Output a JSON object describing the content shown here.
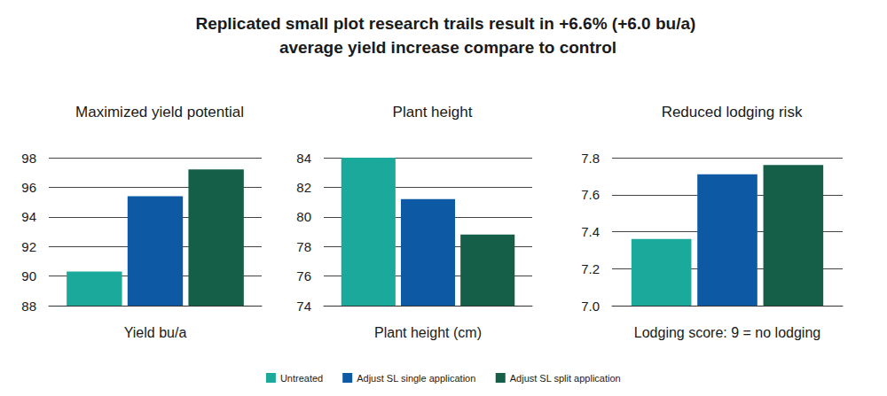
{
  "title": "Replicated small plot research trails result in +6.6% (+6.0 bu/a) average yield increase compare to control",
  "legend": "bottom",
  "chart_data": [
    {
      "type": "bar",
      "title": "Maximized yield potential",
      "x_label": "Yield bu/a",
      "categories": [
        null
      ],
      "tick_labels": "y",
      "grid": true,
      "ylim": [
        88,
        98
      ],
      "yticks": [
        88,
        90,
        92,
        94,
        96,
        98
      ],
      "series": [
        {
          "name": "Untreated",
          "color": "#1aa99b",
          "values": [
            90.3
          ]
        },
        {
          "name": "Adjust SL single application",
          "color": "#0e59a4",
          "values": [
            95.4
          ]
        },
        {
          "name": "Adjust SL split application",
          "color": "#155e48",
          "values": [
            97.2
          ]
        }
      ]
    },
    {
      "type": "bar",
      "title": "Plant height",
      "x_label": "Plant height (cm)",
      "categories": [
        null
      ],
      "tick_labels": "y",
      "grid": true,
      "ylim": [
        74,
        84
      ],
      "yticks": [
        74,
        76,
        78,
        80,
        82,
        84
      ],
      "series": [
        {
          "name": "Untreated",
          "color": "#1aa99b",
          "values": [
            84.0
          ]
        },
        {
          "name": "Adjust SL single application",
          "color": "#0e59a4",
          "values": [
            81.2
          ]
        },
        {
          "name": "Adjust SL split application",
          "color": "#155e48",
          "values": [
            78.8
          ]
        }
      ]
    },
    {
      "type": "bar",
      "title": "Reduced lodging risk",
      "x_label": "Lodging score: 9 = no lodging",
      "categories": [
        null
      ],
      "tick_labels": "y",
      "grid": true,
      "ylim": [
        7.0,
        7.8
      ],
      "yticks": [
        {
          "value": 7.0,
          "label": "7.0"
        },
        7.2,
        7.4,
        7.6,
        7.8
      ],
      "series": [
        {
          "name": "Untreated",
          "color": "#1aa99b",
          "values": [
            7.36
          ]
        },
        {
          "name": "Adjust SL single application",
          "color": "#0e59a4",
          "values": [
            7.71
          ]
        },
        {
          "name": "Adjust SL split application",
          "color": "#155e48",
          "values": [
            7.76
          ]
        }
      ]
    }
  ]
}
